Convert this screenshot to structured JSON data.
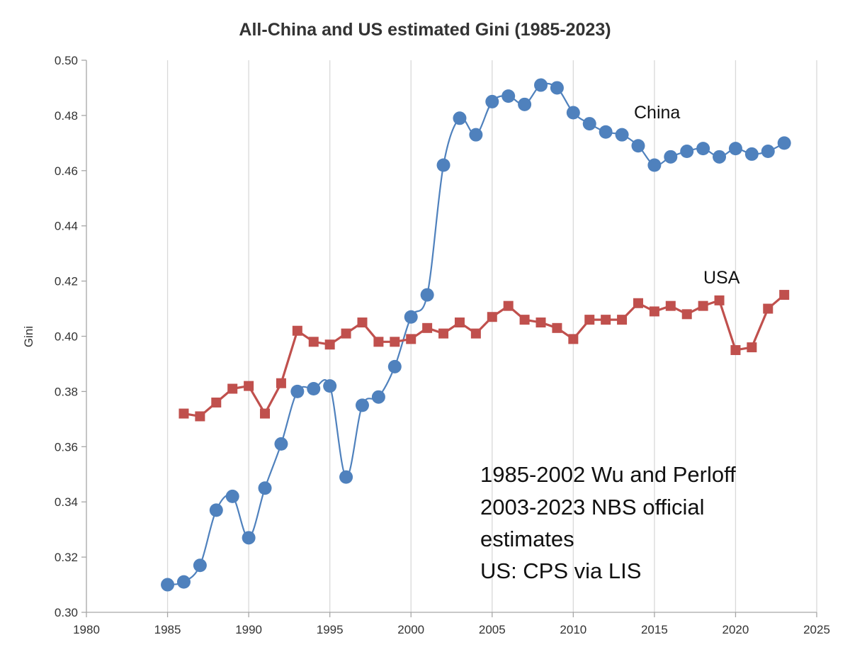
{
  "chart_data": {
    "type": "line",
    "title": "All-China and US estimated Gini  (1985-2023)",
    "xlabel": "",
    "ylabel": "Gini",
    "xlim": [
      1980,
      2025
    ],
    "ylim": [
      0.3,
      0.5
    ],
    "x_ticks": [
      "1980",
      "1985",
      "1990",
      "1995",
      "2000",
      "2005",
      "2010",
      "2015",
      "2020",
      "2025"
    ],
    "y_ticks": [
      "0.30",
      "0.32",
      "0.34",
      "0.36",
      "0.38",
      "0.40",
      "0.42",
      "0.44",
      "0.46",
      "0.48",
      "0.50"
    ],
    "grid": "vertical",
    "series": [
      {
        "name": "China",
        "color": "#4f81bd",
        "marker": "circle",
        "smooth": true,
        "x": [
          1985,
          1986,
          1987,
          1988,
          1989,
          1990,
          1991,
          1992,
          1993,
          1994,
          1995,
          1996,
          1997,
          1998,
          1999,
          2000,
          2001,
          2002,
          2003,
          2004,
          2005,
          2006,
          2007,
          2008,
          2009,
          2010,
          2011,
          2012,
          2013,
          2014,
          2015,
          2016,
          2017,
          2018,
          2019,
          2020,
          2021,
          2022,
          2023
        ],
        "values": [
          0.31,
          0.311,
          0.317,
          0.337,
          0.342,
          0.327,
          0.345,
          0.361,
          0.38,
          0.381,
          0.382,
          0.349,
          0.375,
          0.378,
          0.389,
          0.407,
          0.415,
          0.462,
          0.479,
          0.473,
          0.485,
          0.487,
          0.484,
          0.491,
          0.49,
          0.481,
          0.477,
          0.474,
          0.473,
          0.469,
          0.462,
          0.465,
          0.467,
          0.468,
          0.465,
          0.468,
          0.466,
          0.467,
          0.47
        ]
      },
      {
        "name": "USA",
        "color": "#c0504d",
        "marker": "square",
        "smooth": false,
        "x": [
          1986,
          1987,
          1988,
          1989,
          1990,
          1991,
          1992,
          1993,
          1994,
          1995,
          1996,
          1997,
          1998,
          1999,
          2000,
          2001,
          2002,
          2003,
          2004,
          2005,
          2006,
          2007,
          2008,
          2009,
          2010,
          2011,
          2012,
          2013,
          2014,
          2015,
          2016,
          2017,
          2018,
          2019,
          2020,
          2021,
          2022,
          2023
        ],
        "values": [
          0.372,
          0.371,
          0.376,
          0.381,
          0.382,
          0.372,
          0.383,
          0.402,
          0.398,
          0.397,
          0.401,
          0.405,
          0.398,
          0.398,
          0.399,
          0.403,
          0.401,
          0.405,
          0.401,
          0.407,
          0.411,
          0.406,
          0.405,
          0.403,
          0.399,
          0.406,
          0.406,
          0.406,
          0.412,
          0.409,
          0.411,
          0.408,
          0.411,
          0.413,
          0.395,
          0.396,
          0.41,
          0.415
        ]
      }
    ],
    "annotations": [
      "1985-2002 Wu and Perloff",
      "2003-2023 NBS official",
      "estimates",
      "US: CPS via LIS"
    ]
  }
}
